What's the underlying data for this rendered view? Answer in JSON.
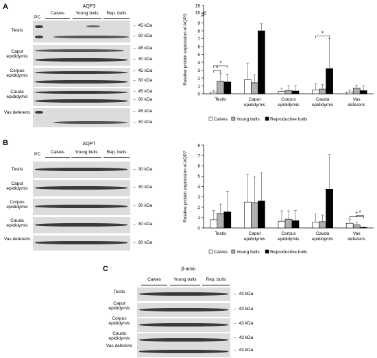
{
  "panels": {
    "A": {
      "letter": "A",
      "blot": {
        "title": "AQP3",
        "pc_label": "PC",
        "groups": [
          "Calves",
          "Young bulls",
          "Rep. bulls"
        ],
        "rows": [
          {
            "label": "Testis",
            "markers": [
              "45 kDa",
              "30 kDa"
            ]
          },
          {
            "label": "Caput epididymis",
            "markers": [
              "45 kDa",
              "30 kDa"
            ]
          },
          {
            "label": "Corpus epididymis",
            "markers": [
              "45 kDa",
              "30 kDa"
            ]
          },
          {
            "label": "Cauda epididymis",
            "markers": [
              "45 kDa",
              "30 kDa"
            ]
          },
          {
            "label": "Vas deferens",
            "markers": [
              "45 kDa",
              "30 kDa"
            ]
          }
        ]
      }
    },
    "B": {
      "letter": "B",
      "blot": {
        "title": "AQP7",
        "pc_label": "PC",
        "groups": [
          "Calves",
          "Young bulls",
          "Rep. bulls"
        ],
        "rows": [
          {
            "label": "Testis",
            "markers": [
              "30 kDa"
            ]
          },
          {
            "label": "Caput epididymis",
            "markers": [
              "30 kDa"
            ]
          },
          {
            "label": "Corpus epididymis",
            "markers": [
              "30 kDa"
            ]
          },
          {
            "label": "Cauda epididymis",
            "markers": [
              "30 kDa"
            ]
          },
          {
            "label": "Vas deferens",
            "markers": [
              "30 kDa"
            ]
          }
        ]
      }
    },
    "C": {
      "letter": "C",
      "blot": {
        "title": "β-actin",
        "groups": [
          "Calves",
          "Young bulls",
          "Rep. bulls"
        ],
        "rows": [
          {
            "label": "Testis",
            "markers": [
              "43 kDa"
            ]
          },
          {
            "label": "Caput epididymis",
            "markers": [
              "43 kDa"
            ]
          },
          {
            "label": "Corpus epididymis",
            "markers": [
              "43 kDa"
            ]
          },
          {
            "label": "Cauda epididymis",
            "markers": [
              "43 kDa"
            ]
          },
          {
            "label": "Vas deferens",
            "markers": [
              "43 kDa"
            ]
          }
        ]
      }
    }
  },
  "chart_data": [
    {
      "type": "bar",
      "panel": "A",
      "ylabel": "Relative protein expression of AQP3",
      "categories": [
        "Testis",
        "Caput epididymis",
        "Corpus epididymis",
        "Cauda epididymis",
        "Vas deferens"
      ],
      "ylim": [
        0,
        18
      ],
      "axis_break": [
        10,
        16
      ],
      "yticks": [
        0,
        1,
        2,
        3,
        4,
        5,
        6,
        7,
        8,
        9,
        16,
        18
      ],
      "ytick_labels": [
        "0",
        "1",
        "2",
        "3",
        "4",
        "5",
        "6",
        "7",
        "8",
        "9",
        "16",
        "18"
      ],
      "series": [
        {
          "name": "Calves",
          "values": [
            0.2,
            1.8,
            0.3,
            0.5,
            0.2
          ],
          "errors": [
            0.2,
            2.1,
            0.4,
            0.8,
            0.3
          ],
          "color": "#ffffff"
        },
        {
          "name": "Young bulls",
          "values": [
            1.6,
            1.4,
            0.4,
            0.6,
            0.7
          ],
          "errors": [
            1.0,
            1.0,
            0.6,
            0.6,
            0.4
          ],
          "color": "#b0b0b0"
        },
        {
          "name": "Reproductive bulls",
          "values": [
            1.5,
            8.0,
            0.35,
            3.2,
            0.4
          ],
          "errors": [
            1.0,
            0.9,
            0.7,
            3.8,
            0.6
          ],
          "color": "#000000"
        }
      ],
      "significance": [
        {
          "category": "Testis",
          "from": "Calves",
          "to": "Young bulls",
          "label": "*"
        },
        {
          "category": "Testis",
          "from": "Calves",
          "to": "Reproductive bulls",
          "label": "*"
        },
        {
          "category": "Cauda epididymis",
          "from": "Calves",
          "to": "Reproductive bulls",
          "label": "*"
        }
      ],
      "legend": "bottom"
    },
    {
      "type": "bar",
      "panel": "B",
      "ylabel": "Relative protein expression of AQP7",
      "categories": [
        "Testis",
        "Caput epididymis",
        "Corpus epididymis",
        "Cauda epididymis",
        "Vas deferens"
      ],
      "ylim": [
        0,
        8
      ],
      "yticks": [
        0,
        1,
        2,
        3,
        4,
        5,
        6,
        7,
        8
      ],
      "ytick_labels": [
        "0",
        "1",
        "2",
        "3",
        "4",
        "5",
        "6",
        "7",
        "8"
      ],
      "series": [
        {
          "name": "Calves",
          "values": [
            0.8,
            2.5,
            0.65,
            0.55,
            0.45
          ],
          "errors": [
            0.9,
            2.7,
            1.0,
            0.8,
            0.4
          ],
          "color": "#ffffff"
        },
        {
          "name": "Young bulls",
          "values": [
            1.4,
            2.45,
            0.85,
            0.6,
            0.3
          ],
          "errors": [
            0.9,
            2.5,
            0.8,
            0.65,
            0.2
          ],
          "color": "#b0b0b0"
        },
        {
          "name": "Reproductive bulls",
          "values": [
            1.55,
            2.6,
            0.7,
            3.75,
            0.05
          ],
          "errors": [
            2.0,
            2.75,
            1.0,
            3.35,
            0.05
          ],
          "color": "#000000"
        }
      ],
      "significance": [
        {
          "category": "Vas deferens",
          "from": "Calves",
          "to": "Reproductive bulls",
          "label": "*"
        },
        {
          "category": "Vas deferens",
          "from": "Young bulls",
          "to": "Reproductive bulls",
          "label": "*"
        }
      ],
      "legend": "bottom"
    }
  ]
}
